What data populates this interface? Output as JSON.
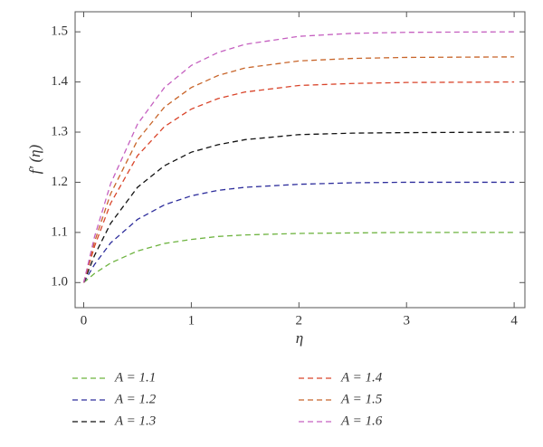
{
  "chart_data": {
    "type": "line",
    "y_label": "f′ (η)",
    "x_label": "η",
    "x": [
      0,
      0.1,
      0.25,
      0.5,
      0.75,
      1,
      1.25,
      1.5,
      2,
      2.5,
      3,
      4
    ],
    "series": [
      {
        "name": "A = 1.1",
        "color": "#6db33f",
        "values": [
          1.0,
          1.018,
          1.039,
          1.063,
          1.078,
          1.086,
          1.092,
          1.095,
          1.098,
          1.099,
          1.1,
          1.1
        ]
      },
      {
        "name": "A = 1.2",
        "color": "#2e2e9c",
        "values": [
          1.0,
          1.036,
          1.079,
          1.126,
          1.155,
          1.173,
          1.184,
          1.19,
          1.196,
          1.199,
          1.2,
          1.2
        ]
      },
      {
        "name": "A = 1.3",
        "color": "#111111",
        "values": [
          1.0,
          1.054,
          1.118,
          1.19,
          1.233,
          1.26,
          1.275,
          1.285,
          1.295,
          1.298,
          1.299,
          1.3
        ]
      },
      {
        "name": "A = 1.4",
        "color": "#d9442a",
        "values": [
          1.0,
          1.072,
          1.158,
          1.253,
          1.311,
          1.346,
          1.367,
          1.38,
          1.393,
          1.397,
          1.399,
          1.4
        ]
      },
      {
        "name": "A = 1.5",
        "color": "#c8652a",
        "values": [
          1.0,
          1.081,
          1.177,
          1.284,
          1.35,
          1.389,
          1.413,
          1.428,
          1.442,
          1.447,
          1.449,
          1.45
        ]
      },
      {
        "name": "A = 1.6",
        "color": "#c560c0",
        "values": [
          1.0,
          1.091,
          1.197,
          1.316,
          1.389,
          1.433,
          1.459,
          1.475,
          1.491,
          1.497,
          1.499,
          1.5
        ]
      }
    ],
    "xlim": [
      -0.08,
      4.1
    ],
    "ylim": [
      0.95,
      1.54
    ],
    "xticks": [
      0,
      1,
      2,
      3,
      4
    ],
    "yticks": [
      {
        "value": 1,
        "label": "1.0"
      },
      1.1,
      1.2,
      1.3,
      1.4,
      1.5
    ],
    "line_style": "dashed"
  }
}
